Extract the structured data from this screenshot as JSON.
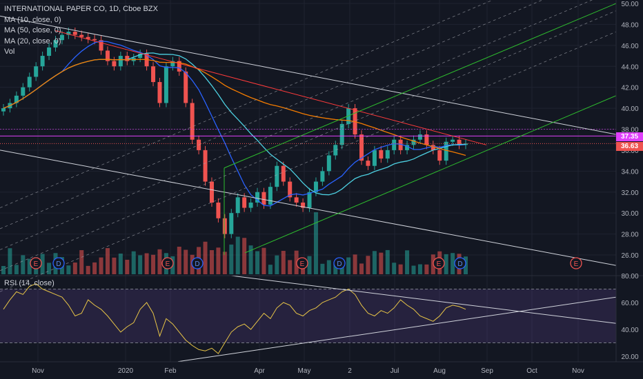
{
  "header": {
    "title": "INTERNATIONAL PAPER CO, 1D, Cboe BZX",
    "indicators": [
      "MA (10, close, 0)",
      "MA (50, close, 0)",
      "MA (20, close, 0)",
      "Vol"
    ]
  },
  "rsi": {
    "label": "RSI (14, close)"
  },
  "price_labels": {
    "magenta": "37.35",
    "red": "36.63"
  },
  "colors": {
    "background": "#131722",
    "grid": "#1f2330",
    "up": "#26a69a",
    "down": "#ef5350",
    "ma10": "#2962ff",
    "ma20": "#4dd0e1",
    "ma50": "#f57c00",
    "channel": "#2ebd2e",
    "trendline": "#ff3b3b",
    "magenta": "#e040fb",
    "rsi_line": "#e8c547",
    "rsi_band": "#7e57c2"
  },
  "chart_data": [
    {
      "type": "candlestick",
      "title": "INTERNATIONAL PAPER CO, 1D, Cboe BZX",
      "x_ticks": [
        "Nov",
        "2020",
        "Feb",
        "Apr",
        "May",
        "2",
        "Jul",
        "Aug",
        "Sep",
        "Oct",
        "Nov"
      ],
      "y_ticks": [
        26,
        28,
        30,
        32,
        34,
        36,
        38,
        40,
        42,
        44,
        46,
        48,
        50
      ],
      "ylim": [
        25,
        50
      ],
      "series_close": [
        40.0,
        40.5,
        41.2,
        42.0,
        43.0,
        44.0,
        45.0,
        45.8,
        46.5,
        47.0,
        47.3,
        47.0,
        46.8,
        46.6,
        46.5,
        45.5,
        44.5,
        44.0,
        45.0,
        44.5,
        44.8,
        45.2,
        44.0,
        42.5,
        40.5,
        44.0,
        44.5,
        43.5,
        40.5,
        37.0,
        36.0,
        33.0,
        31.0,
        29.5,
        28.0,
        30.0,
        31.5,
        30.5,
        31.0,
        32.0,
        30.8,
        32.5,
        34.5,
        33.0,
        31.5,
        31.0,
        30.5,
        32.0,
        33.0,
        34.0,
        35.5,
        36.5,
        38.5,
        40.0,
        37.5,
        35.0,
        34.5,
        36.0,
        35.2,
        36.0,
        37.0,
        36.0,
        36.5,
        37.0,
        37.5,
        36.5,
        36.0,
        35.0,
        36.8,
        37.0,
        36.5,
        36.63
      ],
      "ma_values_note": "",
      "annotations": [
        "E",
        "D",
        "E",
        "D",
        "E",
        "D",
        "E",
        "D",
        "E"
      ],
      "price_labels": [
        "37.35",
        "36.63"
      ]
    },
    {
      "type": "line",
      "title": "RSI (14, close)",
      "y_ticks": [
        20,
        40,
        60,
        80
      ],
      "ylim": [
        15,
        85
      ],
      "bands": [
        30,
        70
      ],
      "values": [
        55,
        62,
        68,
        66,
        72,
        74,
        70,
        68,
        66,
        64,
        58,
        50,
        52,
        62,
        58,
        55,
        50,
        44,
        38,
        42,
        45,
        55,
        60,
        52,
        35,
        48,
        44,
        38,
        32,
        28,
        25,
        24,
        26,
        22,
        30,
        38,
        42,
        44,
        40,
        46,
        52,
        48,
        56,
        60,
        58,
        52,
        50,
        54,
        56,
        60,
        62,
        64,
        68,
        70,
        66,
        58,
        52,
        50,
        54,
        52,
        56,
        62,
        58,
        55,
        50,
        48,
        46,
        50,
        56,
        58,
        57,
        55
      ]
    }
  ]
}
